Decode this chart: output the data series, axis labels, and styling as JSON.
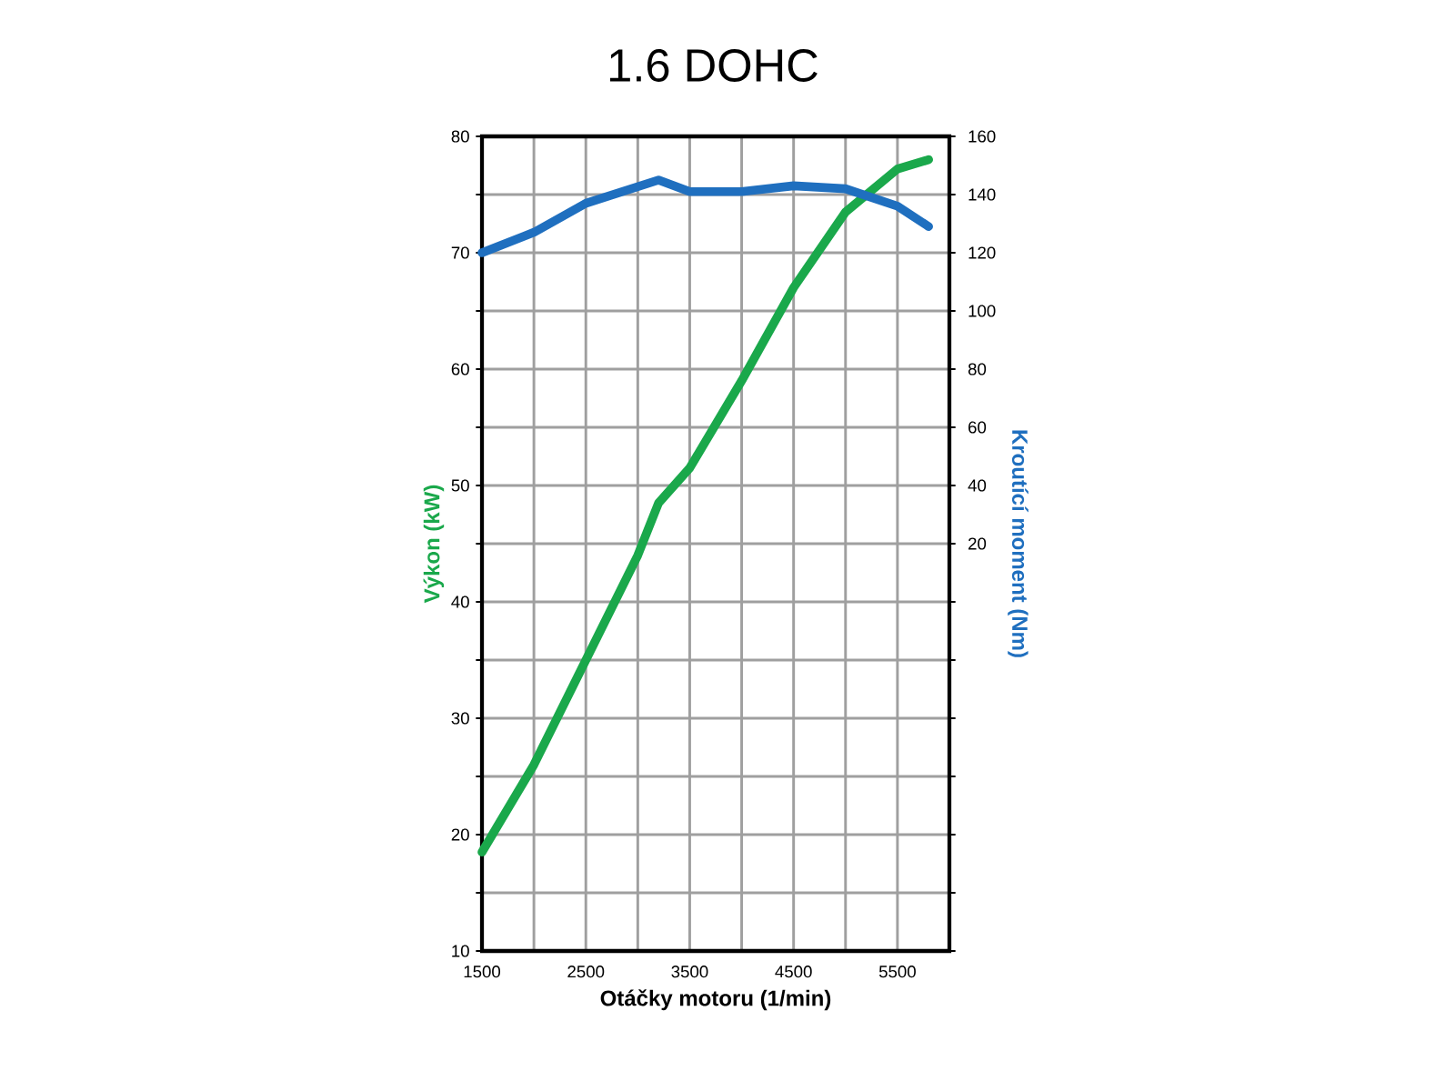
{
  "chart_data": {
    "type": "line",
    "title": "1.6 DOHC",
    "xlabel": "Otáčky motoru (1/min)",
    "ylabel": "Výkon (kW)",
    "y2label": "Kroutící moment (Nm)",
    "xlim": [
      1500,
      6000
    ],
    "xticks": [
      1500,
      {
        "value": 2000,
        "label": null
      },
      2500,
      {
        "value": 3000,
        "label": null
      },
      3500,
      {
        "value": 4000,
        "label": null
      },
      4500,
      {
        "value": 5000,
        "label": null
      },
      5500,
      {
        "value": 6000,
        "label": null
      }
    ],
    "ylim": [
      10,
      80
    ],
    "yticks": [
      10,
      {
        "value": 15,
        "label": null
      },
      20,
      {
        "value": 25,
        "label": null
      },
      30,
      {
        "value": 35,
        "label": null
      },
      40,
      {
        "value": 45,
        "label": null
      },
      50,
      {
        "value": 55,
        "label": null
      },
      60,
      {
        "value": 65,
        "label": null
      },
      70,
      {
        "value": 75,
        "label": null
      },
      80
    ],
    "y2lim": [
      -120,
      160
    ],
    "y2ticks": [
      20,
      40,
      60,
      80,
      100,
      120,
      140,
      160
    ],
    "grid": true,
    "series": [
      {
        "color": "#1aa84b",
        "x": [
          1500,
          2000,
          2500,
          3000,
          3200,
          3500,
          4000,
          4500,
          5000,
          5500,
          5800
        ],
        "values": [
          18.5,
          26,
          35,
          44,
          48.5,
          51.5,
          59,
          67,
          73.5,
          77.2,
          78
        ]
      },
      {
        "color": "#1f6fbf",
        "axis": "y2",
        "x": [
          1500,
          2000,
          2500,
          3200,
          3500,
          4000,
          4500,
          5000,
          5500,
          5800
        ],
        "values": [
          120,
          127,
          137,
          145,
          141,
          141,
          143,
          142,
          136,
          129
        ]
      }
    ]
  }
}
